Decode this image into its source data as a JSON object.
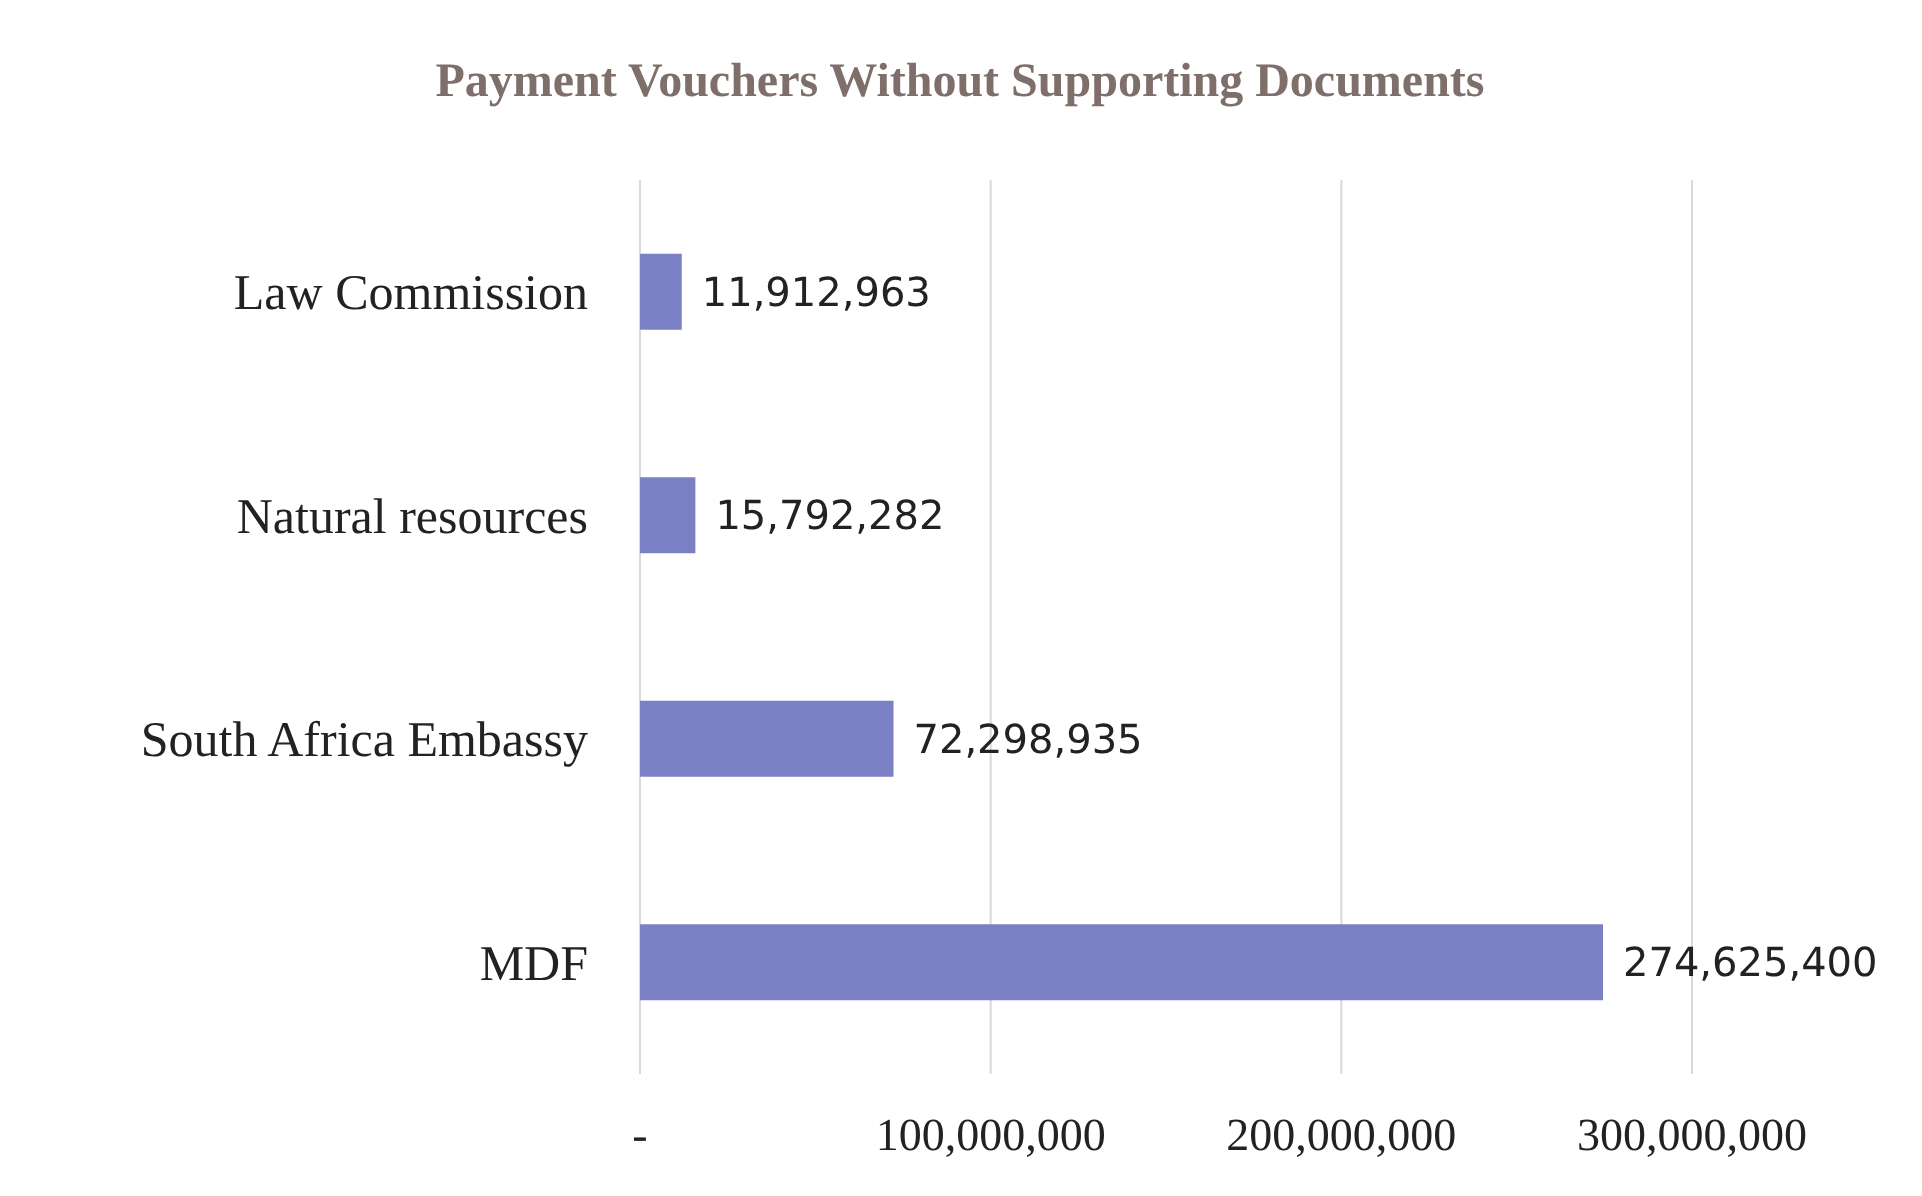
{
  "chart_data": {
    "type": "bar",
    "orientation": "horizontal",
    "title": "Payment Vouchers Without  Supporting Documents",
    "categories": [
      "Law Commission",
      "Natural resources",
      "South Africa Embassy",
      "MDF"
    ],
    "values": [
      11912963,
      15792282,
      72298935,
      274625400
    ],
    "value_labels": [
      "11,912,963",
      "15,792,282",
      "72,298,935",
      "274,625,400"
    ],
    "color": "#7b7fc4",
    "xlim": [
      0,
      300000000
    ],
    "xticks": [
      {
        "value": 0,
        "label": "-"
      },
      {
        "value": 100000000,
        "label": "100,000,000"
      },
      {
        "value": 200000000,
        "label": "200,000,000"
      },
      {
        "value": 300000000,
        "label": "300,000,000"
      }
    ],
    "grid": "x"
  }
}
